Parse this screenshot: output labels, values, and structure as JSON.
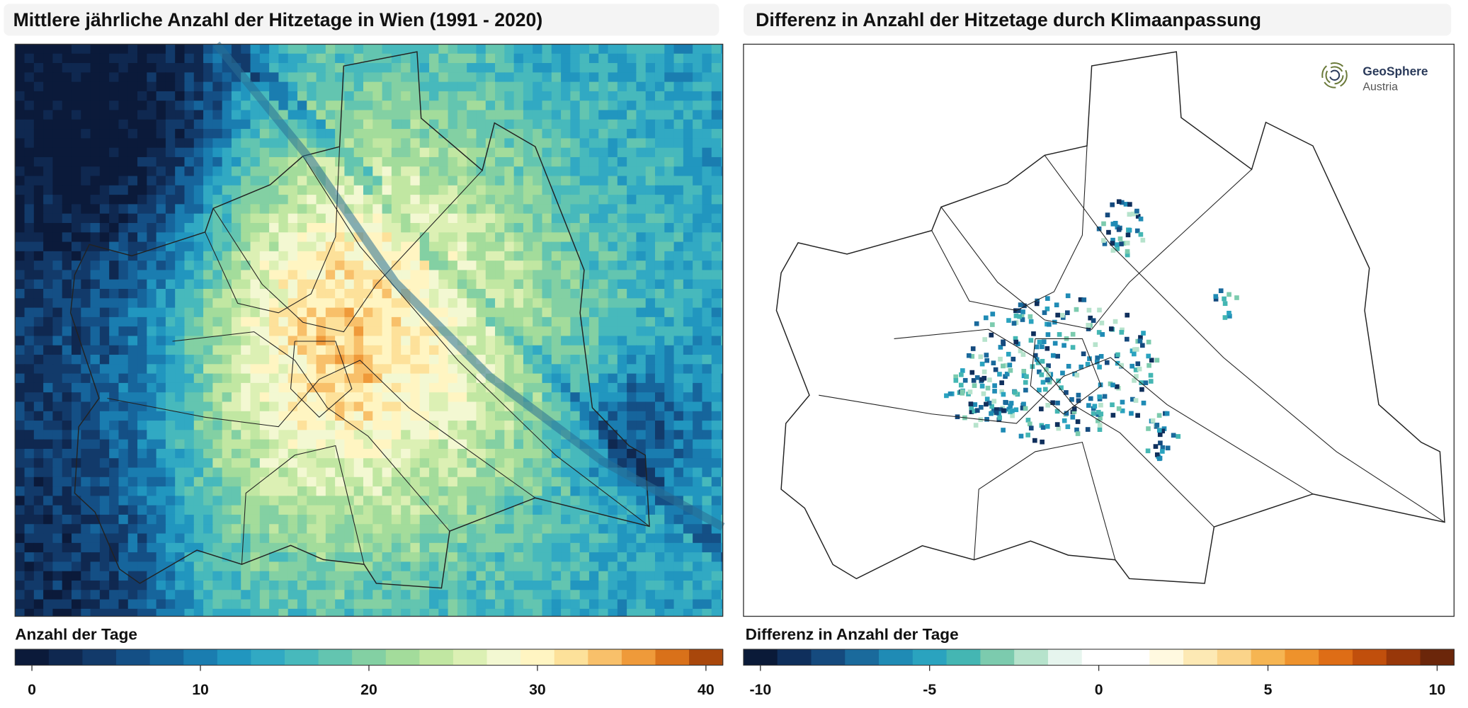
{
  "panels": [
    {
      "title": "Mittlere jährliche Anzahl der Hitzetage in Wien (1991 - 2020)",
      "colorbar": {
        "label": "Anzahl der Tage",
        "lim": [
          -1,
          41
        ],
        "ticks": [
          0,
          10,
          20,
          30,
          40
        ],
        "colors": [
          "#0b1a3a",
          "#0f2850",
          "#123a6a",
          "#144f85",
          "#16659c",
          "#1a7db0",
          "#2196bf",
          "#31a9c3",
          "#47b9bc",
          "#63c5b0",
          "#83d0a3",
          "#a3dc9b",
          "#c1e7a2",
          "#dcf0b4",
          "#f3f8d2",
          "#fff5c2",
          "#fde19a",
          "#f8c06a",
          "#ef9a3a",
          "#d9711a",
          "#a9470b"
        ]
      }
    },
    {
      "title": "Differenz in Anzahl der Hitzetage durch Klimaanpassung",
      "colorbar": {
        "label": "Differenz in Anzahl der Tage",
        "lim": [
          -10.5,
          10.5
        ],
        "ticks": [
          -10,
          -5,
          0,
          5,
          10
        ],
        "colors": [
          "#0a1a38",
          "#0f2f5c",
          "#154a7e",
          "#1a6a9c",
          "#1f8bb5",
          "#2aa3bf",
          "#44b6b3",
          "#7ccbae",
          "#b6e3cc",
          "#e6f5ee",
          "#ffffff",
          "#ffffff",
          "#fff9e0",
          "#fde9b4",
          "#fbd48a",
          "#f6b552",
          "#ee922c",
          "#de6d16",
          "#c14f0c",
          "#983709",
          "#6b260a"
        ]
      }
    }
  ],
  "logo": {
    "name": "GeoSphere",
    "country": "Austria"
  }
}
